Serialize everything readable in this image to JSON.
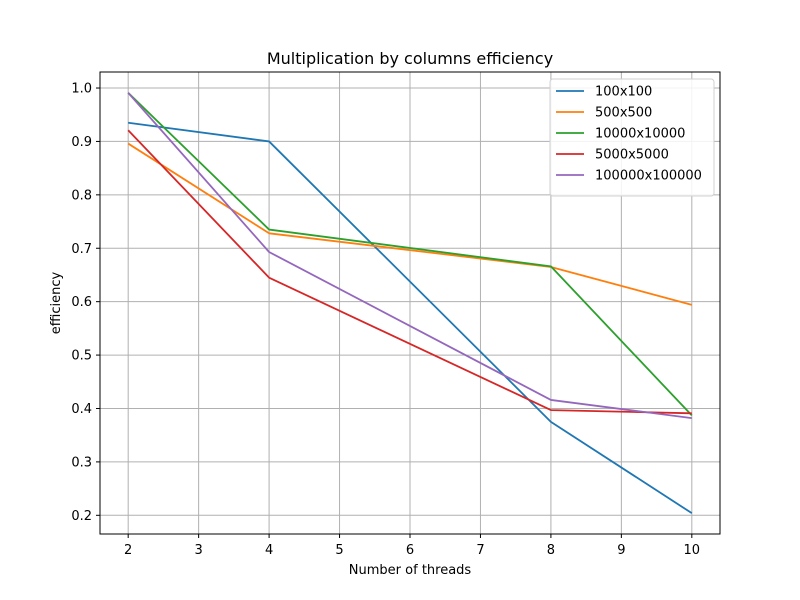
{
  "chart_data": {
    "type": "line",
    "title": "Multiplication by columns efficiency",
    "xlabel": "Number of threads",
    "ylabel": "efficiency",
    "x": [
      2,
      4,
      8,
      10
    ],
    "xticks": [
      2,
      3,
      4,
      5,
      6,
      7,
      8,
      9,
      10
    ],
    "yticks": [
      0.2,
      0.3,
      0.4,
      0.5,
      0.6,
      0.7,
      0.8,
      0.9,
      1.0
    ],
    "xlim": [
      1.6,
      10.4
    ],
    "ylim": [
      0.165,
      1.03
    ],
    "grid": true,
    "legend_position": "top-right",
    "series": [
      {
        "name": "100x100",
        "color": "#1f77b4",
        "values": [
          0.935,
          0.9,
          0.375,
          0.204
        ]
      },
      {
        "name": "500x500",
        "color": "#ff7f0e",
        "values": [
          0.896,
          0.728,
          0.665,
          0.594
        ]
      },
      {
        "name": "10000x10000",
        "color": "#2ca02c",
        "values": [
          0.991,
          0.735,
          0.666,
          0.387
        ]
      },
      {
        "name": "5000x5000",
        "color": "#d62728",
        "values": [
          0.921,
          0.645,
          0.397,
          0.391
        ]
      },
      {
        "name": "100000x100000",
        "color": "#9467bd",
        "values": [
          0.991,
          0.693,
          0.416,
          0.382
        ]
      }
    ]
  }
}
